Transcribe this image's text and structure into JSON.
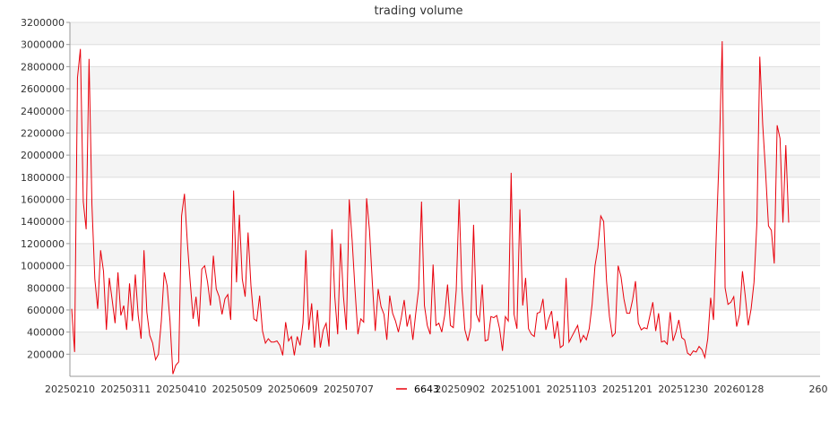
{
  "chart_data": {
    "type": "line",
    "title": "trading volume",
    "xlabel": "",
    "ylabel": "",
    "ylim": [
      0,
      3200000
    ],
    "y_ticks": [
      200000,
      400000,
      600000,
      800000,
      1000000,
      1200000,
      1400000,
      1600000,
      1800000,
      2000000,
      2200000,
      2400000,
      2600000,
      2800000,
      3000000,
      3200000
    ],
    "y_tick_labels": [
      "200000",
      "400000",
      "600000",
      "800000",
      "1000000",
      "1200000",
      "1400000",
      "1600000",
      "1800000",
      "2000000",
      "2200000",
      "2400000",
      "2600000",
      "2800000",
      "3000000",
      "3200000"
    ],
    "x_tick_labels": [
      "20250210",
      "20250311",
      "20250410",
      "20250509",
      "20250609",
      "20250707",
      "",
      "20250902",
      "20251001",
      "20251103",
      "20251201",
      "20251230",
      "20260128",
      "260"
    ],
    "grid": "horizontal-bands",
    "legend_position": "bottom-center",
    "colors": {
      "series": "#e8000b",
      "band": "#f4f4f4",
      "grid": "#dddddd",
      "axis": "#999999"
    },
    "series": [
      {
        "name": "6643",
        "values": [
          610000,
          220000,
          2700000,
          2960000,
          1580000,
          1330000,
          2870000,
          1550000,
          880000,
          610000,
          1140000,
          950000,
          420000,
          890000,
          690000,
          480000,
          940000,
          550000,
          640000,
          420000,
          840000,
          500000,
          920000,
          550000,
          340000,
          1140000,
          580000,
          370000,
          300000,
          150000,
          200000,
          500000,
          940000,
          820000,
          500000,
          20000,
          100000,
          130000,
          1450000,
          1650000,
          1210000,
          850000,
          520000,
          720000,
          450000,
          970000,
          1000000,
          850000,
          640000,
          1090000,
          790000,
          720000,
          560000,
          700000,
          740000,
          510000,
          1680000,
          850000,
          1460000,
          880000,
          720000,
          1300000,
          820000,
          520000,
          500000,
          730000,
          410000,
          300000,
          340000,
          310000,
          310000,
          320000,
          280000,
          190000,
          490000,
          320000,
          360000,
          190000,
          360000,
          280000,
          480000,
          1140000,
          420000,
          660000,
          260000,
          600000,
          260000,
          420000,
          480000,
          270000,
          1330000,
          720000,
          380000,
          1200000,
          720000,
          420000,
          1600000,
          1230000,
          780000,
          380000,
          520000,
          490000,
          1610000,
          1320000,
          840000,
          410000,
          790000,
          630000,
          560000,
          330000,
          730000,
          570000,
          500000,
          400000,
          530000,
          690000,
          450000,
          560000,
          330000,
          570000,
          790000,
          1580000,
          640000,
          460000,
          380000,
          1010000,
          460000,
          480000,
          400000,
          550000,
          830000,
          460000,
          440000,
          780000,
          1600000,
          780000,
          420000,
          320000,
          440000,
          1370000,
          560000,
          490000,
          830000,
          320000,
          330000,
          540000,
          530000,
          550000,
          430000,
          230000,
          540000,
          500000,
          1840000,
          560000,
          430000,
          1510000,
          640000,
          890000,
          430000,
          380000,
          360000,
          570000,
          580000,
          700000,
          420000,
          520000,
          590000,
          340000,
          500000,
          260000,
          280000,
          890000,
          310000,
          360000,
          410000,
          460000,
          310000,
          370000,
          330000,
          430000,
          650000,
          1000000,
          1160000,
          1450000,
          1400000,
          860000,
          540000,
          360000,
          390000,
          1000000,
          900000,
          700000,
          570000,
          570000,
          690000,
          860000,
          480000,
          420000,
          440000,
          430000,
          550000,
          670000,
          410000,
          570000,
          310000,
          320000,
          290000,
          580000,
          320000,
          400000,
          510000,
          350000,
          330000,
          210000,
          190000,
          230000,
          220000,
          270000,
          240000,
          170000,
          340000,
          710000,
          510000,
          1310000,
          2040000,
          3030000,
          800000,
          650000,
          670000,
          720000,
          450000,
          560000,
          950000,
          720000,
          460000,
          610000,
          850000,
          1390000,
          2890000,
          2280000,
          1850000,
          1360000,
          1320000,
          1020000,
          2270000,
          2150000,
          1390000,
          2090000,
          1390000
        ]
      }
    ]
  }
}
